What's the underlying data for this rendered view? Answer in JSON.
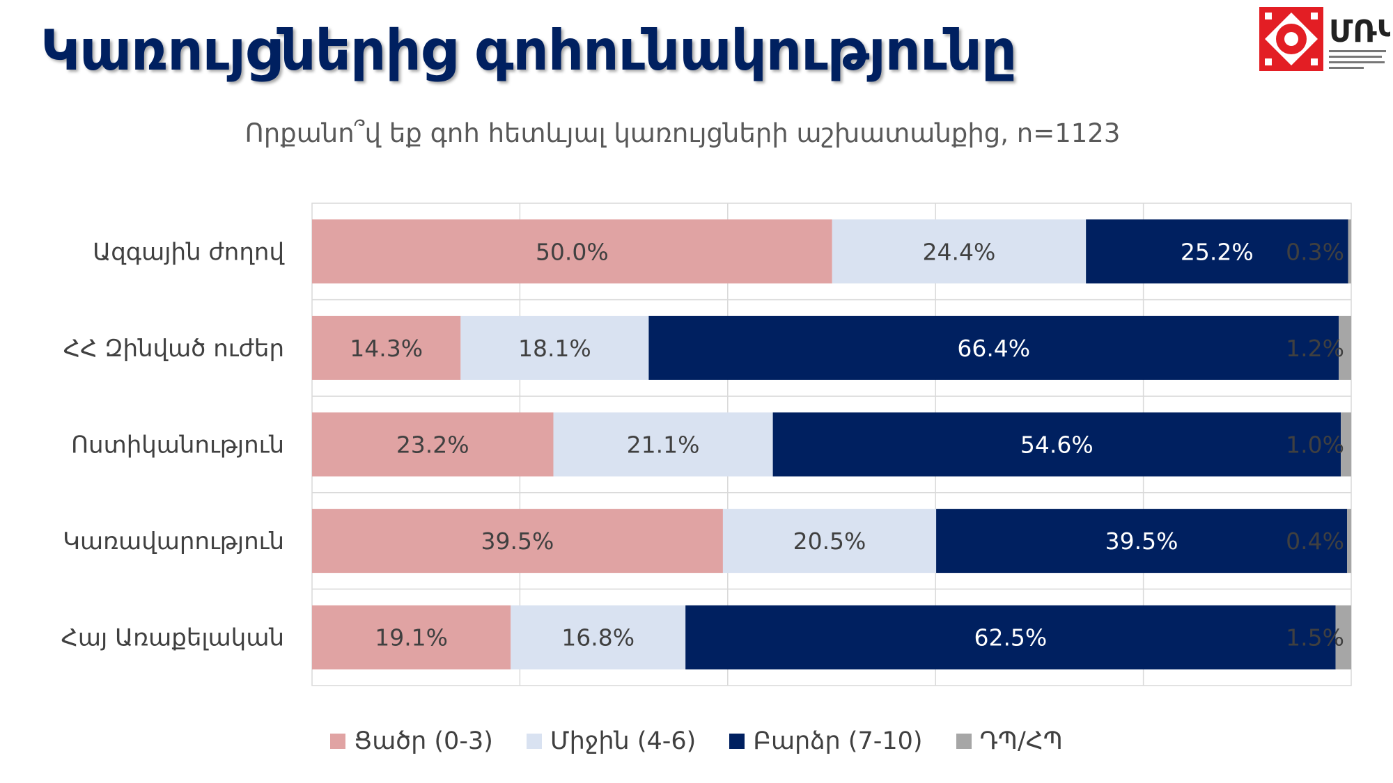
{
  "page": {
    "title": "Կառույցներից գոհունակությունը"
  },
  "logo": {
    "text": "ՄՌԿ"
  },
  "chart_data": {
    "type": "bar",
    "orientation": "horizontal",
    "stacked": true,
    "title": "Որքանո՞վ եք գոհ հետևյալ կառույցների աշխատանքից, n=1123",
    "categories": [
      "Ազգային ժողով",
      "ՀՀ Զինված ուժեր",
      "Ոստիկանություն",
      "Կառավարություն",
      "Հայ Առաքելական"
    ],
    "series": [
      {
        "name": "Ցածր (0-3)",
        "color": "#E0A3A3",
        "label_color": "#404040",
        "values": [
          50.0,
          14.3,
          23.2,
          39.5,
          19.1
        ],
        "labels": [
          "50.0%",
          "14.3%",
          "23.2%",
          "39.5%",
          "19.1%"
        ]
      },
      {
        "name": "Միջին (4-6)",
        "color": "#D9E2F1",
        "label_color": "#404040",
        "values": [
          24.4,
          18.1,
          21.1,
          20.5,
          16.8
        ],
        "labels": [
          "24.4%",
          "18.1%",
          "21.1%",
          "20.5%",
          "16.8%"
        ]
      },
      {
        "name": "Բարձր (7-10)",
        "color": "#002060",
        "label_color": "#FFFFFF",
        "values": [
          25.2,
          66.4,
          54.6,
          39.5,
          62.5
        ],
        "labels": [
          "25.2%",
          "66.4%",
          "54.6%",
          "39.5%",
          "62.5%"
        ]
      },
      {
        "name": "ԴՊ/ՀՊ",
        "color": "#A6A6A6",
        "label_color": "#404040",
        "values": [
          0.3,
          1.2,
          1.0,
          0.4,
          1.5
        ],
        "labels": [
          "0.3%",
          "1.2%",
          "1.0%",
          "0.4%",
          "1.5%"
        ]
      }
    ],
    "xlim": [
      0,
      100
    ],
    "grid": true,
    "legend_position": "bottom"
  },
  "colors": {
    "title": "#002060",
    "logo_red": "#E31E24",
    "gridline": "#D9D9D9"
  }
}
